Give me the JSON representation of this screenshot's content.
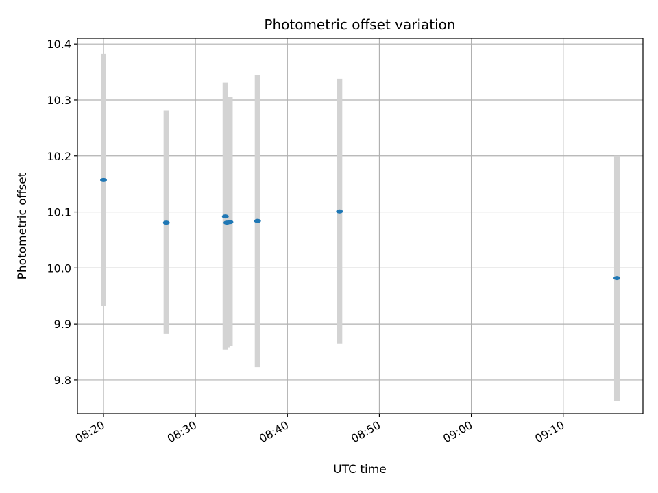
{
  "chart_data": {
    "type": "scatter",
    "title": "Photometric offset variation",
    "xlabel": "UTC time",
    "ylabel": "Photometric offset",
    "grid": true,
    "xlim": [
      "08:17:10",
      "09:18:40"
    ],
    "ylim": [
      9.74,
      10.41
    ],
    "x_ticks": [
      "08:20",
      "08:30",
      "08:40",
      "08:50",
      "09:00",
      "09:10"
    ],
    "y_ticks": [
      9.8,
      9.9,
      10.0,
      10.1,
      10.2,
      10.3,
      10.4
    ],
    "y_tick_labels": [
      "9.8",
      "9.9",
      "10.0",
      "10.1",
      "10.2",
      "10.3",
      "10.4"
    ],
    "colors": {
      "point": "#1f77b4",
      "errorbar": "#d3d3d3",
      "grid": "#b0b0b0"
    },
    "series": [
      {
        "points": [
          {
            "x": "08:20:00",
            "y": 10.157,
            "ylow": 9.932,
            "yhigh": 10.382
          },
          {
            "x": "08:26:50",
            "y": 10.081,
            "ylow": 9.882,
            "yhigh": 10.281
          },
          {
            "x": "08:33:15",
            "y": 10.092,
            "ylow": 9.854,
            "yhigh": 10.331
          },
          {
            "x": "08:33:25",
            "y": 10.081,
            "ylow": 9.858,
            "yhigh": 10.305
          },
          {
            "x": "08:33:45",
            "y": 10.082,
            "ylow": 9.86,
            "yhigh": 10.305
          },
          {
            "x": "08:36:45",
            "y": 10.084,
            "ylow": 9.823,
            "yhigh": 10.345
          },
          {
            "x": "08:45:40",
            "y": 10.101,
            "ylow": 9.865,
            "yhigh": 10.338
          },
          {
            "x": "09:15:50",
            "y": 9.982,
            "ylow": 9.762,
            "yhigh": 10.2
          }
        ]
      }
    ]
  }
}
